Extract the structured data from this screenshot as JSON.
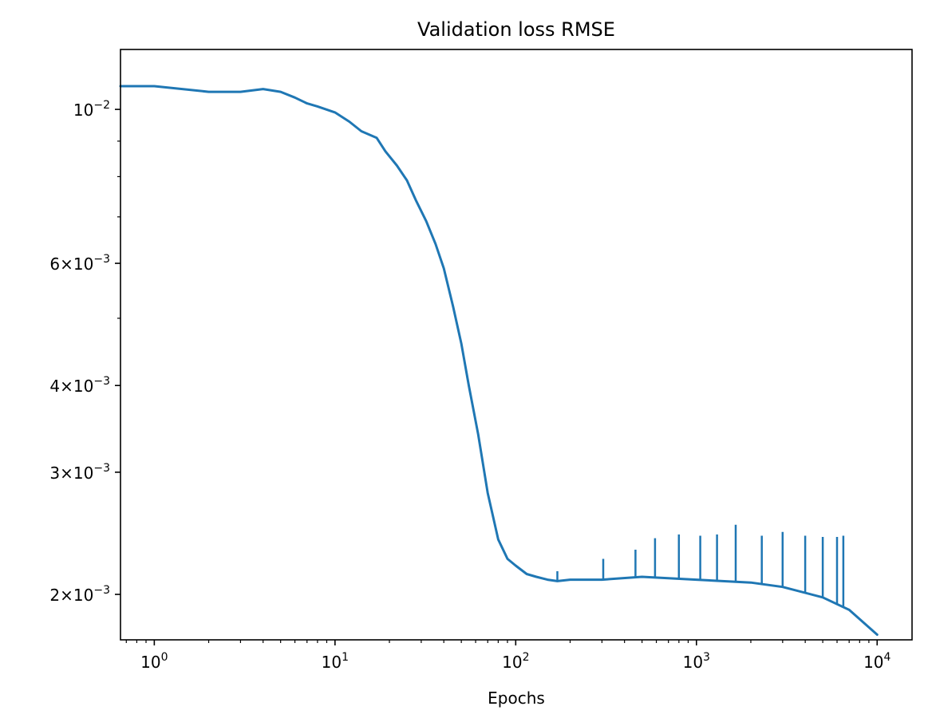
{
  "chart_data": {
    "type": "line",
    "title": "Validation loss RMSE",
    "xlabel": "Epochs",
    "ylabel": "",
    "xscale": "log",
    "yscale": "log",
    "xlim": [
      0.65,
      15600
    ],
    "ylim": [
      0.00172,
      0.0122
    ],
    "grid": false,
    "color": "#1f77b4",
    "x_ticks": [
      {
        "value": 1,
        "base": "10",
        "exp": "0"
      },
      {
        "value": 10,
        "base": "10",
        "exp": "1"
      },
      {
        "value": 100,
        "base": "10",
        "exp": "2"
      },
      {
        "value": 1000,
        "base": "10",
        "exp": "3"
      },
      {
        "value": 10000,
        "base": "10",
        "exp": "4"
      }
    ],
    "y_ticks": [
      {
        "value": 0.01,
        "mant": "",
        "base": "10",
        "exp": "−2"
      },
      {
        "value": 0.006,
        "mant": "6×",
        "base": "10",
        "exp": "−3"
      },
      {
        "value": 0.004,
        "mant": "4×",
        "base": "10",
        "exp": "−3"
      },
      {
        "value": 0.003,
        "mant": "3×",
        "base": "10",
        "exp": "−3"
      },
      {
        "value": 0.002,
        "mant": "2×",
        "base": "10",
        "exp": "−3"
      }
    ],
    "y_minor_ticks": [
      0.007,
      0.008,
      0.009,
      0.005
    ],
    "series": [
      {
        "name": "",
        "x": [
          0.65,
          1,
          2,
          3,
          4,
          5,
          6,
          7,
          8,
          10,
          12,
          14,
          17,
          19,
          22,
          25,
          28,
          32,
          36,
          40,
          45,
          50,
          55,
          62,
          70,
          80,
          90,
          100,
          115,
          130,
          150,
          170,
          200,
          300,
          500,
          1000,
          2000,
          3000,
          5000,
          7000,
          10000
        ],
        "y": [
          0.0108,
          0.0108,
          0.0106,
          0.0106,
          0.0107,
          0.0106,
          0.0104,
          0.0102,
          0.0101,
          0.0099,
          0.0096,
          0.0093,
          0.0091,
          0.0087,
          0.0083,
          0.0079,
          0.0074,
          0.0069,
          0.0064,
          0.0059,
          0.0052,
          0.0046,
          0.004,
          0.0034,
          0.0028,
          0.0024,
          0.00225,
          0.0022,
          0.00214,
          0.00212,
          0.0021,
          0.00209,
          0.0021,
          0.0021,
          0.00212,
          0.0021,
          0.00208,
          0.00205,
          0.00198,
          0.0019,
          0.00175
        ]
      },
      {
        "name": "",
        "x": [
          170,
          305,
          460,
          590,
          800,
          1050,
          1300,
          1650,
          2300,
          3000,
          4000,
          5000,
          6000,
          6500
        ],
        "y": [
          0.00216,
          0.00225,
          0.00232,
          0.00241,
          0.00244,
          0.00243,
          0.00244,
          0.00252,
          0.00243,
          0.00246,
          0.00243,
          0.00242,
          0.00242,
          0.00243
        ]
      }
    ]
  }
}
